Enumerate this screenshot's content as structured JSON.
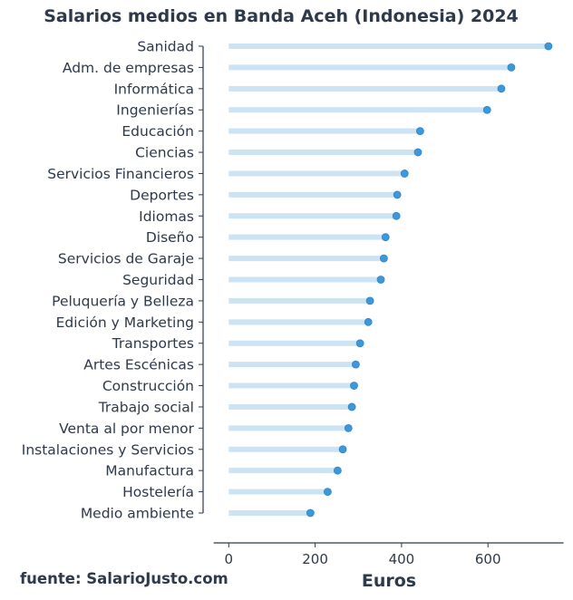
{
  "chart_data": {
    "type": "bar",
    "subtype": "lollipop-horizontal",
    "title": "Salarios medios en Banda Aceh (Indonesia) 2024",
    "xlabel": "Euros",
    "ylabel": "",
    "xlim": [
      -35,
      775
    ],
    "xticks": [
      0,
      200,
      400,
      600
    ],
    "grid": false,
    "legend": "none",
    "categories": [
      "Sanidad",
      "Adm. de empresas",
      "Informática",
      "Ingenierías",
      "Educación",
      "Ciencias",
      "Servicios Financieros",
      "Deportes",
      "Idiomas",
      "Diseño",
      "Servicios de Garaje",
      "Seguridad",
      "Peluquería y Belleza",
      "Edición y Marketing",
      "Transportes",
      "Artes Escénicas",
      "Construcción",
      "Trabajo social",
      "Venta al por menor",
      "Instalaciones y Servicios",
      "Manufactura",
      "Hostelería",
      "Medio ambiente"
    ],
    "values": [
      740,
      654,
      631,
      598,
      443,
      438,
      407,
      390,
      388,
      363,
      359,
      352,
      327,
      323,
      304,
      294,
      290,
      285,
      277,
      264,
      252,
      229,
      189
    ],
    "colors": {
      "stem": "#cce3f4",
      "dot": "#3d97d9",
      "dot_edge": "#2f86c8",
      "axis": "#2e3a4b",
      "text": "#2e3a4b"
    }
  },
  "footer": {
    "source": "fuente: SalarioJusto.com"
  }
}
